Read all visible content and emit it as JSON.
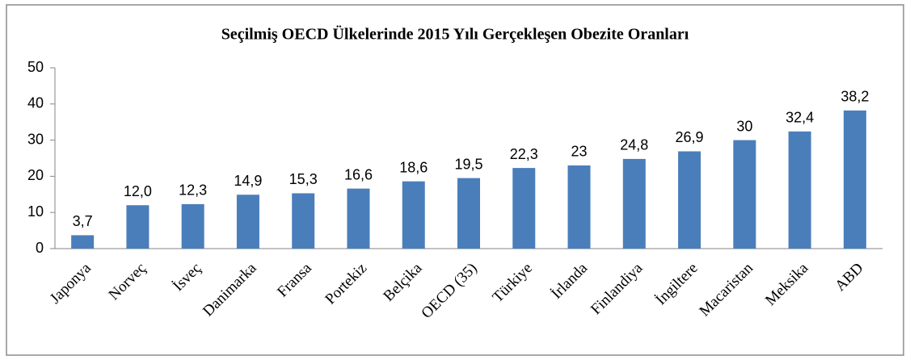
{
  "chart_data": {
    "type": "bar",
    "title": "Seçilmiş OECD Ülkelerinde 2015 Yılı Gerçekleşen Obezite Oranları",
    "categories": [
      "Japonya",
      "Norveç",
      "İsveç",
      "Danimarka",
      "Fransa",
      "Portekiz",
      "Belçika",
      "OECD (35)",
      "Türkiye",
      "İrlanda",
      "Finlandiya",
      "İngiltere",
      "Macaristan",
      "Meksika",
      "ABD"
    ],
    "values": [
      3.7,
      12.0,
      12.3,
      14.9,
      15.3,
      16.6,
      18.6,
      19.5,
      22.3,
      23,
      24.8,
      26.9,
      30,
      32.4,
      38.2
    ],
    "value_labels": [
      "3,7",
      "12,0",
      "12,3",
      "14,9",
      "15,3",
      "16,6",
      "18,6",
      "19,5",
      "22,3",
      "23",
      "24,8",
      "26,9",
      "30",
      "32,4",
      "38,2"
    ],
    "color": "#4a7ebb",
    "ylim": [
      0,
      50
    ],
    "yticks": [
      0,
      10,
      20,
      30,
      40,
      50
    ],
    "grid": false
  }
}
